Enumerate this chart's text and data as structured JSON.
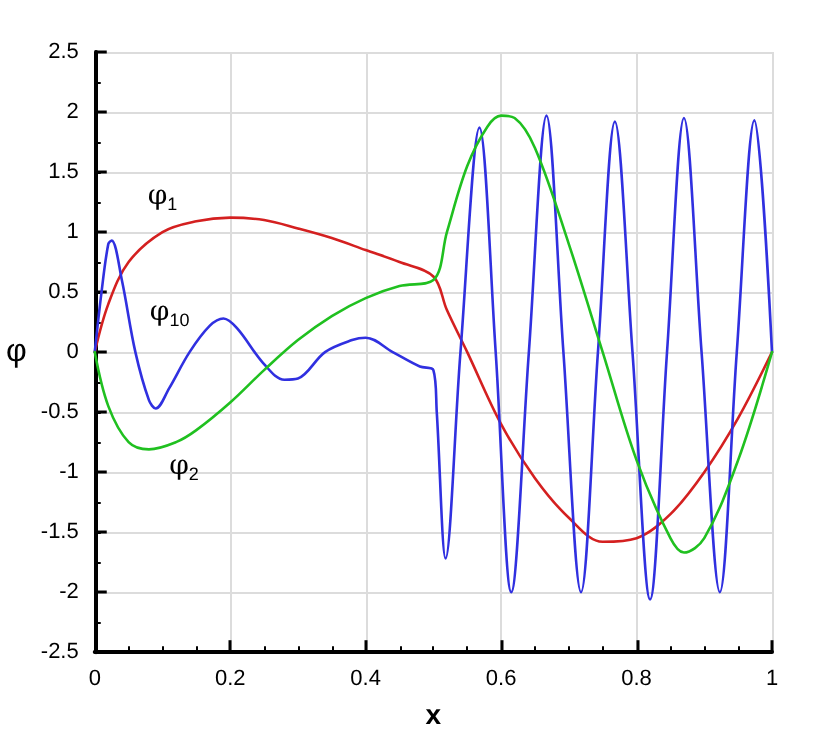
{
  "chart_data": {
    "type": "line",
    "xlabel": "x",
    "ylabel": "φ",
    "xlim": [
      0,
      1
    ],
    "xticks": [
      0,
      0.2,
      0.4,
      0.6,
      0.8,
      1
    ],
    "ylim": [
      -2.5,
      2.5
    ],
    "yticks": [
      -2.5,
      -2,
      -1.5,
      -1,
      -0.5,
      0,
      0.5,
      1,
      1.5,
      2,
      2.5
    ],
    "grid": true,
    "legend": false,
    "marker": "none",
    "line_style": "solid",
    "series": [
      {
        "name": "φ$_{1}$",
        "color": "#d42020",
        "x": [
          0,
          0.02,
          0.05,
          0.1,
          0.15,
          0.2,
          0.25,
          0.3,
          0.35,
          0.4,
          0.45,
          0.5,
          0.52,
          0.55,
          0.6,
          0.65,
          0.7,
          0.75,
          0.8,
          0.85,
          0.9,
          0.95,
          1
        ],
        "values": [
          0,
          0.4,
          0.75,
          1.0,
          1.09,
          1.12,
          1.1,
          1.03,
          0.95,
          0.85,
          0.75,
          0.63,
          0.35,
          0,
          -0.6,
          -1.05,
          -1.38,
          -1.58,
          -1.55,
          -1.35,
          -1.0,
          -0.55,
          0
        ]
      },
      {
        "name": "φ$_{10}$",
        "color": "#3030e0",
        "x": [
          0,
          0.01,
          0.02,
          0.025,
          0.04,
          0.06,
          0.08,
          0.09,
          0.11,
          0.14,
          0.17,
          0.19,
          0.21,
          0.25,
          0.28,
          0.3,
          0.34,
          0.38,
          0.4,
          0.44,
          0.48,
          0.5,
          0.505,
          0.518,
          0.54,
          0.568,
          0.592,
          0.615,
          0.641,
          0.667,
          0.692,
          0.718,
          0.743,
          0.768,
          0.794,
          0.82,
          0.845,
          0.87,
          0.896,
          0.923,
          0.948,
          0.974,
          1
        ],
        "values": [
          0,
          0.5,
          0.9,
          0.93,
          0.6,
          0,
          -0.4,
          -0.47,
          -0.3,
          0,
          0.22,
          0.28,
          0.2,
          -0.1,
          -0.23,
          -0.22,
          0,
          0.1,
          0.12,
          0,
          -0.12,
          -0.15,
          -0.5,
          -1.72,
          0,
          1.87,
          0,
          -2.0,
          0,
          1.97,
          0,
          -2.0,
          0,
          1.92,
          0,
          -2.06,
          0,
          1.95,
          0,
          -2.0,
          0,
          1.93,
          0
        ]
      },
      {
        "name": "φ$_{2}$",
        "color": "#20c020",
        "x": [
          0,
          0.02,
          0.05,
          0.08,
          0.12,
          0.15,
          0.2,
          0.25,
          0.3,
          0.35,
          0.4,
          0.45,
          0.5,
          0.52,
          0.55,
          0.58,
          0.6,
          0.62,
          0.65,
          0.7,
          0.75,
          0.8,
          0.85,
          0.87,
          0.9,
          0.95,
          1
        ],
        "values": [
          0,
          -0.45,
          -0.75,
          -0.81,
          -0.75,
          -0.65,
          -0.42,
          -0.15,
          0.1,
          0.3,
          0.45,
          0.55,
          0.6,
          1.0,
          1.55,
          1.88,
          1.97,
          1.95,
          1.7,
          0.9,
          0,
          -0.9,
          -1.55,
          -1.67,
          -1.55,
          -0.9,
          0
        ]
      }
    ]
  }
}
